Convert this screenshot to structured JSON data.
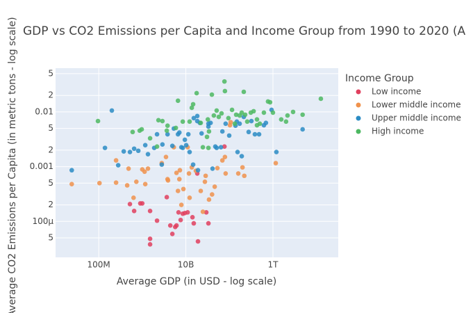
{
  "chart_data": {
    "type": "scatter",
    "title": "GDP vs CO2 Emissions per Capita and Income Group from 1990 to 2020 (A",
    "x_label": "Average GDP (in USD - log scale)",
    "y_label": "Average CO2 Emissions per Capita (in metric tons - log scale)",
    "legend_title": "Income Group",
    "legend": "right",
    "log_x": true,
    "log_y": true,
    "grid": true,
    "xlim": [
      10200000.0,
      31600000000000.0
    ],
    "ylim": [
      2.2e-05,
      0.063
    ],
    "xticks": [
      {
        "value": 100000000.0,
        "label": "100M"
      },
      {
        "value": 10000000000.0,
        "label": "10B"
      },
      {
        "value": 1000000000000.0,
        "label": "1T"
      }
    ],
    "yticks": [
      {
        "value": 5e-05,
        "label": "5"
      },
      {
        "value": 0.0001,
        "label": "100µ"
      },
      {
        "value": 0.0002,
        "label": "2"
      },
      {
        "value": 0.0005,
        "label": "5"
      },
      0.001,
      {
        "value": 0.002,
        "label": "2"
      },
      {
        "value": 0.005,
        "label": "5"
      },
      0.01,
      {
        "value": 0.02,
        "label": "2"
      },
      {
        "value": 0.05,
        "label": "5"
      }
    ],
    "series": [
      {
        "name": "Low income",
        "color": "#e0405e",
        "x": [
          77000000000.0,
          520000000.0,
          650000000.0,
          900000000.0,
          1000000000.0,
          1510000000.0,
          1510000000.0,
          2180000000.0,
          3650000000.0,
          4400000000.0,
          4900000000.0,
          5700000000.0,
          6100000000.0,
          6800000000.0,
          7600000000.0,
          8500000000.0,
          9500000000.0,
          11000000000.0,
          14200000000.0,
          15200000000.0,
          18300000000.0,
          19000000000.0,
          33000000000.0,
          29500000000.0,
          1510000000.0
        ],
        "values": [
          0.00233,
          0.000207,
          0.000155,
          0.000213,
          0.000213,
          4.8e-05,
          3.8e-05,
          0.000103,
          0.000277,
          8.4e-05,
          5.9e-05,
          7.9e-05,
          8.4e-05,
          0.000146,
          0.000106,
          0.000138,
          0.000142,
          0.000146,
          0.000119,
          9.2e-05,
          0.00075,
          4.3e-05,
          9.2e-05,
          0.000146,
          0.000155
        ]
      },
      {
        "name": "Lower middle income",
        "color": "#f0924c",
        "x": [
          24000000.0,
          104000000.0,
          250000000.0,
          250000000.0,
          484000000.0,
          450000000.0,
          630000000.0,
          730000000.0,
          1000000000.0,
          1130000000.0,
          1170000000.0,
          1350000000.0,
          2800000000.0,
          3500000000.0,
          3800000000.0,
          3900000000.0,
          5300000000.0,
          6100000000.0,
          6600000000.0,
          7100000000.0,
          7300000000.0,
          7900000000.0,
          8800000000.0,
          11000000000.0,
          11800000000.0,
          12200000000.0,
          13700000000.0,
          17000000000.0,
          22000000000.0,
          24600000000.0,
          27400000000.0,
          28500000000.0,
          34000000000.0,
          40000000000.0,
          46000000000.0,
          53000000000.0,
          69000000000.0,
          79000000000.0,
          82000000000.0,
          107000000000.0,
          160000000000.0,
          200000000000.0,
          220000000000.0,
          1160000000000.0,
          103000000000.0
        ],
        "values": [
          0.00048,
          0.0005,
          0.0013,
          0.00051,
          0.00092,
          0.000455,
          0.00027,
          0.00053,
          0.00089,
          0.00081,
          0.00048,
          0.00092,
          0.00116,
          0.0015,
          0.00059,
          0.00056,
          0.00226,
          0.00077,
          0.00036,
          0.00059,
          0.00086,
          0.0002,
          0.00039,
          0.00226,
          0.00075,
          0.00027,
          0.00097,
          0.00084,
          0.00036,
          0.00015,
          0.00053,
          0.00068,
          0.00025,
          0.00031,
          0.00043,
          0.00094,
          0.0013,
          0.0015,
          0.00075,
          0.0065,
          0.00075,
          0.00097,
          0.00068,
          0.00116,
          0.0057
        ]
      },
      {
        "name": "Upper middle income",
        "color": "#2b8cc4",
        "x": [
          24000000.0,
          200000000.0,
          139000000.0,
          280000000.0,
          375000000.0,
          520000000.0,
          650000000.0,
          810000000.0,
          1170000000.0,
          1350000000.0,
          1880000000.0,
          2180000000.0,
          2800000000.0,
          2900000000.0,
          3800000000.0,
          4900000000.0,
          5300000000.0,
          6600000000.0,
          7100000000.0,
          7900000000.0,
          8500000000.0,
          9500000000.0,
          10200000000.0,
          11400000000.0,
          12200000000.0,
          14700000000.0,
          15200000000.0,
          18300000000.0,
          19000000000.0,
          21000000000.0,
          23000000000.0,
          33000000000.0,
          37000000000.0,
          41000000000.0,
          47500000000.0,
          51000000000.0,
          64000000000.0,
          69000000000.0,
          82000000000.0,
          99000000000.0,
          138000000000.0,
          148000000000.0,
          154000000000.0,
          172000000000.0,
          192000000000.0,
          214000000000.0,
          277000000000.0,
          320000000000.0,
          385000000000.0,
          480000000000.0,
          620000000000.0,
          690000000000.0,
          930000000000.0,
          1200000000000.0,
          4800000000000.0,
          18300000000.0,
          33000000000.0
        ],
        "values": [
          0.00086,
          0.0106,
          0.0022,
          0.00106,
          0.0019,
          0.00185,
          0.00213,
          0.00195,
          0.00247,
          0.00169,
          0.0022,
          0.0039,
          0.00109,
          0.00254,
          0.0039,
          0.0024,
          0.00497,
          0.0039,
          0.0042,
          0.00226,
          0.0022,
          0.0031,
          0.00247,
          0.0039,
          0.00185,
          0.00109,
          0.0077,
          0.0068,
          0.00086,
          0.0063,
          0.00405,
          0.0061,
          0.0063,
          0.00092,
          0.00233,
          0.0022,
          0.00226,
          0.0044,
          0.0061,
          0.0037,
          0.0056,
          0.00665,
          0.00185,
          0.0061,
          0.00155,
          0.0081,
          0.0043,
          0.0068,
          0.0039,
          0.0039,
          0.0057,
          0.0063,
          0.0109,
          0.00185,
          0.0048,
          0.0084,
          0.0054
        ]
      },
      {
        "name": "High income",
        "color": "#4db862",
        "x": [
          96000000.0,
          600000000.0,
          870000000.0,
          970000000.0,
          1510000000.0,
          2180000000.0,
          2350000000.0,
          2900000000.0,
          3650000000.0,
          3800000000.0,
          5900000000.0,
          6600000000.0,
          8500000000.0,
          12200000000.0,
          13700000000.0,
          14700000000.0,
          17700000000.0,
          22000000000.0,
          24600000000.0,
          30600000000.0,
          32000000000.0,
          33000000000.0,
          34000000000.0,
          39600000000.0,
          44000000000.0,
          51000000000.0,
          57000000000.0,
          66000000000.0,
          77000000000.0,
          79000000000.0,
          95000000000.0,
          115000000000.0,
          133000000000.0,
          143000000000.0,
          172000000000.0,
          192000000000.0,
          214000000000.0,
          230000000000.0,
          257000000000.0,
          310000000000.0,
          360000000000.0,
          430000000000.0,
          430000000000.0,
          500000000000.0,
          620000000000.0,
          770000000000.0,
          860000000000.0,
          1000000000000.0,
          1550000000000.0,
          2000000000000.0,
          2160000000000.0,
          2900000000000.0,
          4800000000000.0,
          12600000000000.0
        ],
        "values": [
          0.0068,
          0.0043,
          0.00455,
          0.0048,
          0.0033,
          0.00233,
          0.00705,
          0.0068,
          0.00455,
          0.0056,
          0.0051,
          0.016,
          0.00665,
          0.00665,
          0.0119,
          0.0138,
          0.022,
          0.0063,
          0.00226,
          0.0035,
          0.0073,
          0.0022,
          0.0044,
          0.0207,
          0.0086,
          0.0106,
          0.0081,
          0.0094,
          0.036,
          0.024,
          0.0077,
          0.0109,
          0.0061,
          0.0089,
          0.0086,
          0.0097,
          0.0233,
          0.0089,
          0.00665,
          0.0097,
          0.0103,
          0.0073,
          0.0057,
          0.0061,
          0.0097,
          0.0155,
          0.015,
          0.0097,
          0.0073,
          0.00665,
          0.0086,
          0.01,
          0.0089,
          0.0174
        ]
      }
    ]
  }
}
